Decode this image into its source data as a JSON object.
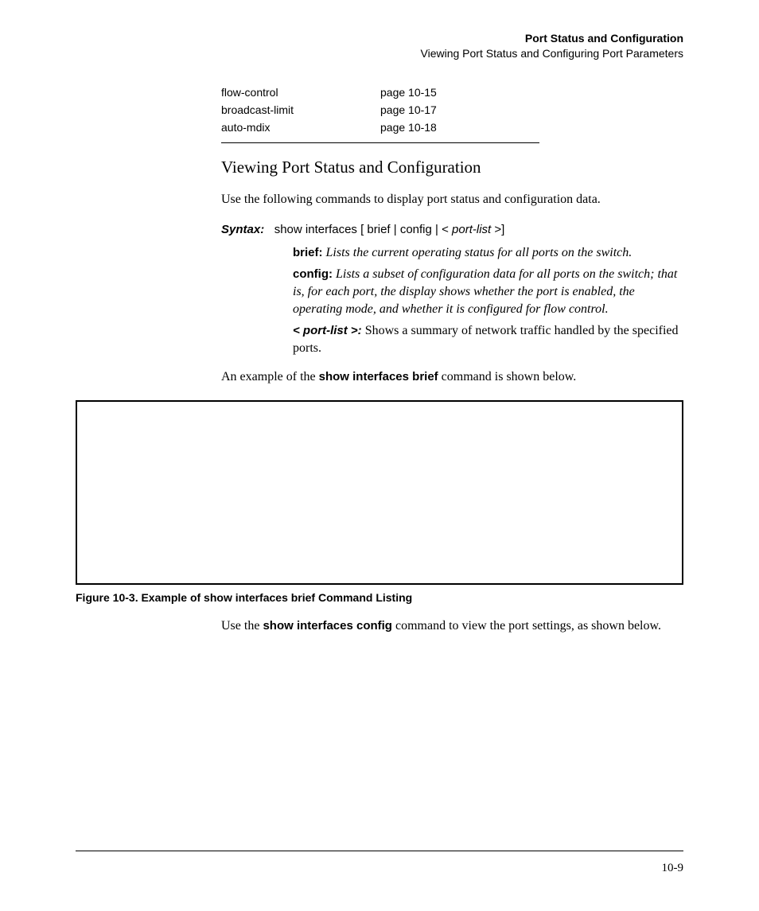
{
  "header": {
    "title": "Port Status and Configuration",
    "subtitle": "Viewing Port Status and Configuring Port Parameters"
  },
  "ref_table": {
    "rows": [
      {
        "label": "flow-control",
        "page": "page 10-15"
      },
      {
        "label": "broadcast-limit",
        "page": "page 10-17"
      },
      {
        "label": "auto-mdix",
        "page": "page 10-18"
      }
    ]
  },
  "section_heading": "Viewing Port Status and Configuration",
  "intro_text": "Use the following commands to display port status and configuration data.",
  "syntax": {
    "label": "Syntax:",
    "command_prefix": "show interfaces [ brief | config | < ",
    "command_italic": "port-list",
    "command_suffix": " >]"
  },
  "descriptions": {
    "brief_label": "brief:",
    "brief_text": " Lists the current operating status for all ports on the switch.",
    "config_label": "config:",
    "config_text": " Lists a subset of configuration data for all ports on the switch; that is, for each port, the display shows whether the port is enabled, the operating mode, and whether it is configured for flow control.",
    "portlist_label": "< port-list >:",
    "portlist_text": " Shows a summary of network traffic handled by the specified ports."
  },
  "example_intro_pre": "An example of the ",
  "example_intro_bold": "show interfaces brief",
  "example_intro_post": " command is shown below.",
  "figure_caption": "Figure 10-3.  Example of show interfaces brief Command Listing",
  "closing_pre": "Use the ",
  "closing_bold": "show interfaces config",
  "closing_post": " command to view the port settings, as shown below.",
  "page_number": "10-9"
}
